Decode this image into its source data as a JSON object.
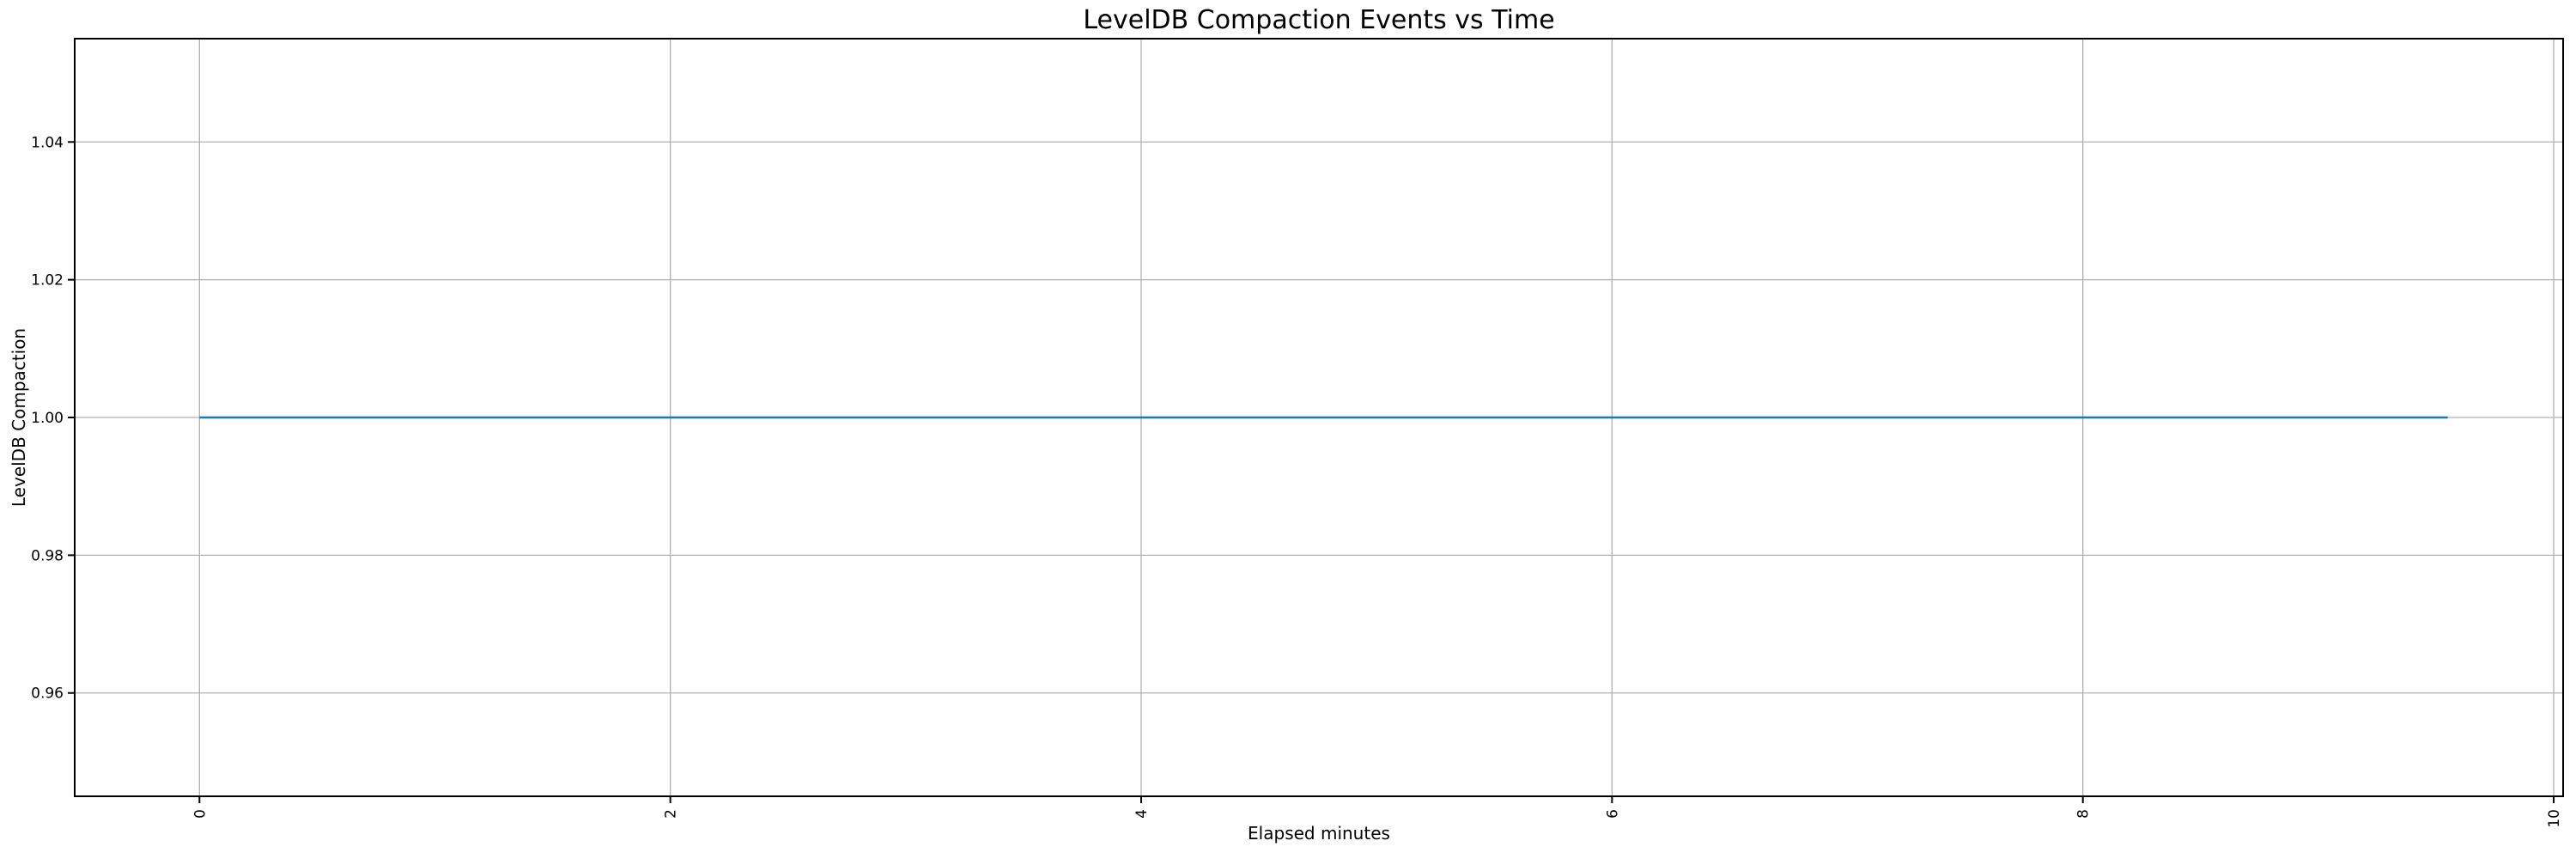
{
  "window": {
    "background": "#ffffff"
  },
  "chart_data": {
    "type": "line",
    "title": "LevelDB Compaction Events vs Time",
    "xlabel": "Elapsed minutes",
    "ylabel": "LevelDB Compaction",
    "xlim": [
      -0.53,
      10.04
    ],
    "ylim": [
      0.945,
      1.055
    ],
    "x_ticks": [
      0,
      2,
      4,
      6,
      8,
      10
    ],
    "x_tick_labels": [
      "0",
      "2",
      "4",
      "6",
      "8",
      "10"
    ],
    "x_tick_rotation": 90,
    "y_ticks": [
      0.96,
      0.98,
      1.0,
      1.02,
      1.04
    ],
    "y_tick_labels": [
      "0.96",
      "0.98",
      "1.00",
      "1.02",
      "1.04"
    ],
    "grid": true,
    "legend": "none",
    "series": [
      {
        "name": "LevelDB Compaction",
        "color": "#1f77b4",
        "x": [
          0.0,
          9.55
        ],
        "y": [
          1.0,
          1.0
        ]
      }
    ],
    "colors": {
      "line": "#1f77b4",
      "grid": "#b0b0b0",
      "spine": "#000000",
      "text": "#000000",
      "background": "#ffffff"
    }
  }
}
